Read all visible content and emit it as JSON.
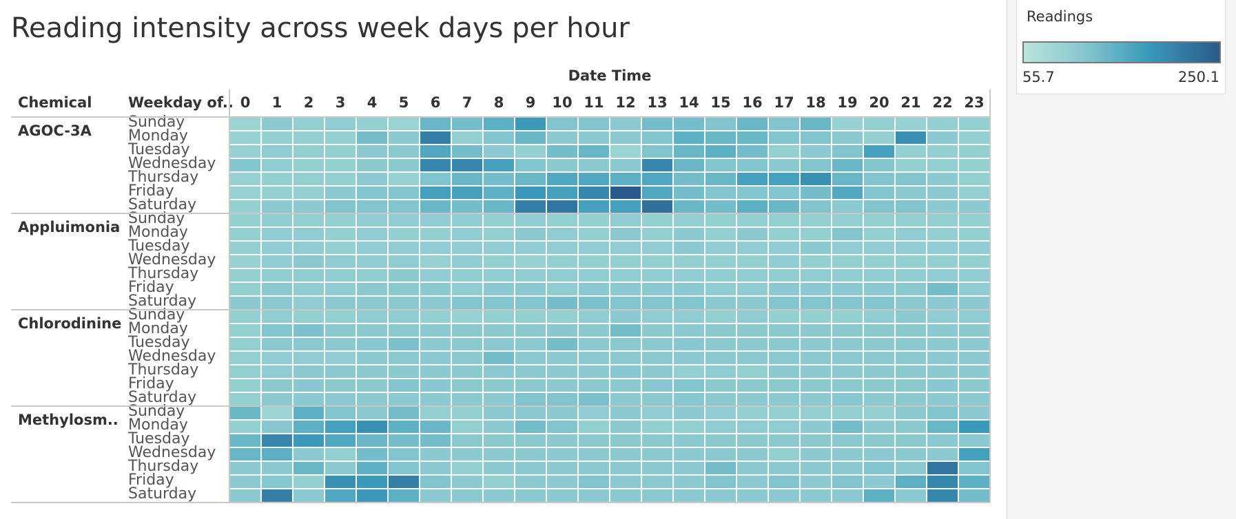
{
  "chart_data": {
    "type": "heatmap",
    "title": "Reading intensity across week days per hour",
    "x_axis_title": "Date Time",
    "row_header_labels": [
      "Chemical",
      "Weekday of.."
    ],
    "hours": [
      "0",
      "1",
      "2",
      "3",
      "4",
      "5",
      "6",
      "7",
      "8",
      "9",
      "10",
      "11",
      "12",
      "13",
      "14",
      "15",
      "16",
      "17",
      "18",
      "19",
      "20",
      "21",
      "22",
      "23"
    ],
    "weekdays": [
      "Sunday",
      "Monday",
      "Tuesday",
      "Wednesday",
      "Thursday",
      "Friday",
      "Saturday"
    ],
    "legend": {
      "title": "Readings",
      "min": 55.7,
      "max": 250.1,
      "min_label": "55.7",
      "max_label": "250.1"
    },
    "colors": {
      "low": "#b9e4da",
      "mid1": "#88c8cf",
      "mid2": "#3d9cbb",
      "high": "#2b5b88"
    },
    "chemicals": [
      {
        "name": "AGOC-3A",
        "values": [
          [
            90,
            110,
            100,
            105,
            100,
            90,
            140,
            130,
            150,
            180,
            120,
            120,
            110,
            130,
            130,
            120,
            140,
            120,
            140,
            95,
            100,
            95,
            100,
            100
          ],
          [
            95,
            100,
            100,
            100,
            130,
            110,
            210,
            100,
            120,
            140,
            110,
            110,
            110,
            120,
            150,
            140,
            140,
            120,
            120,
            110,
            100,
            190,
            110,
            100
          ],
          [
            95,
            105,
            100,
            100,
            110,
            110,
            160,
            130,
            110,
            100,
            130,
            140,
            90,
            120,
            140,
            150,
            130,
            100,
            110,
            120,
            170,
            100,
            100,
            100
          ],
          [
            120,
            105,
            100,
            100,
            110,
            110,
            200,
            200,
            170,
            120,
            110,
            110,
            110,
            200,
            140,
            120,
            120,
            110,
            120,
            140,
            120,
            100,
            100,
            100
          ],
          [
            95,
            100,
            100,
            100,
            110,
            95,
            120,
            140,
            130,
            140,
            160,
            160,
            150,
            160,
            130,
            140,
            170,
            170,
            190,
            140,
            120,
            120,
            110,
            100
          ],
          [
            95,
            100,
            100,
            110,
            120,
            120,
            170,
            170,
            150,
            180,
            170,
            200,
            250,
            160,
            130,
            120,
            120,
            120,
            130,
            160,
            120,
            110,
            110,
            100
          ],
          [
            100,
            110,
            110,
            120,
            120,
            120,
            140,
            130,
            140,
            210,
            220,
            170,
            170,
            225,
            140,
            130,
            150,
            140,
            120,
            110,
            120,
            120,
            110,
            110
          ]
        ]
      },
      {
        "name": "Appluimonia",
        "values": [
          [
            100,
            105,
            100,
            100,
            105,
            105,
            105,
            105,
            100,
            105,
            100,
            100,
            105,
            100,
            100,
            100,
            100,
            100,
            100,
            100,
            100,
            100,
            100,
            100
          ],
          [
            100,
            105,
            105,
            100,
            105,
            100,
            100,
            105,
            100,
            110,
            105,
            100,
            110,
            100,
            110,
            100,
            110,
            100,
            100,
            120,
            100,
            105,
            100,
            100
          ],
          [
            100,
            105,
            105,
            100,
            105,
            105,
            105,
            105,
            105,
            105,
            105,
            105,
            105,
            105,
            110,
            105,
            105,
            105,
            110,
            105,
            105,
            105,
            105,
            105
          ],
          [
            95,
            105,
            110,
            105,
            105,
            105,
            95,
            105,
            100,
            95,
            100,
            100,
            100,
            100,
            100,
            100,
            100,
            105,
            100,
            100,
            100,
            100,
            100,
            100
          ],
          [
            100,
            105,
            105,
            105,
            105,
            110,
            105,
            105,
            105,
            105,
            105,
            105,
            105,
            105,
            105,
            105,
            105,
            105,
            105,
            105,
            105,
            105,
            105,
            105
          ],
          [
            100,
            110,
            105,
            105,
            110,
            110,
            110,
            105,
            110,
            110,
            105,
            110,
            110,
            110,
            110,
            105,
            105,
            110,
            110,
            110,
            110,
            110,
            130,
            105
          ],
          [
            110,
            110,
            105,
            110,
            110,
            110,
            110,
            120,
            120,
            120,
            130,
            125,
            120,
            120,
            120,
            110,
            110,
            120,
            120,
            120,
            120,
            110,
            110,
            110
          ]
        ]
      },
      {
        "name": "Chlorodinine",
        "values": [
          [
            100,
            105,
            100,
            100,
            105,
            105,
            100,
            95,
            100,
            100,
            100,
            105,
            110,
            105,
            105,
            100,
            105,
            100,
            100,
            100,
            105,
            110,
            105,
            105
          ],
          [
            100,
            120,
            125,
            110,
            110,
            110,
            110,
            110,
            110,
            110,
            115,
            110,
            130,
            110,
            110,
            110,
            110,
            110,
            110,
            110,
            110,
            110,
            110,
            110
          ],
          [
            100,
            110,
            110,
            110,
            115,
            125,
            110,
            110,
            110,
            110,
            130,
            110,
            110,
            110,
            115,
            110,
            110,
            110,
            110,
            110,
            110,
            110,
            110,
            110
          ],
          [
            100,
            105,
            105,
            105,
            110,
            110,
            110,
            110,
            130,
            110,
            110,
            110,
            110,
            110,
            110,
            110,
            110,
            110,
            110,
            110,
            110,
            110,
            110,
            110
          ],
          [
            100,
            105,
            110,
            110,
            110,
            110,
            110,
            110,
            110,
            110,
            110,
            110,
            115,
            110,
            100,
            105,
            100,
            110,
            110,
            110,
            110,
            110,
            110,
            110
          ],
          [
            100,
            110,
            115,
            110,
            110,
            120,
            115,
            110,
            110,
            110,
            110,
            110,
            110,
            115,
            120,
            110,
            110,
            110,
            110,
            110,
            110,
            110,
            115,
            110
          ],
          [
            100,
            110,
            110,
            110,
            110,
            110,
            110,
            110,
            110,
            120,
            120,
            125,
            110,
            110,
            115,
            110,
            110,
            110,
            110,
            115,
            110,
            110,
            110,
            110
          ]
        ]
      },
      {
        "name": "Methylosm..",
        "values": [
          [
            140,
            90,
            150,
            120,
            110,
            130,
            100,
            100,
            110,
            110,
            110,
            105,
            110,
            105,
            110,
            105,
            100,
            100,
            100,
            100,
            100,
            110,
            120,
            110
          ],
          [
            100,
            115,
            150,
            170,
            190,
            150,
            140,
            100,
            110,
            130,
            120,
            100,
            110,
            100,
            100,
            105,
            105,
            105,
            110,
            130,
            110,
            110,
            140,
            180
          ],
          [
            140,
            200,
            180,
            160,
            140,
            130,
            130,
            110,
            110,
            110,
            110,
            110,
            110,
            110,
            110,
            110,
            110,
            110,
            110,
            110,
            110,
            110,
            110,
            110
          ],
          [
            140,
            150,
            110,
            100,
            130,
            120,
            110,
            110,
            110,
            110,
            110,
            110,
            110,
            110,
            110,
            110,
            110,
            100,
            110,
            110,
            110,
            110,
            110,
            170
          ],
          [
            110,
            110,
            140,
            110,
            150,
            120,
            110,
            100,
            110,
            110,
            110,
            110,
            110,
            110,
            110,
            130,
            110,
            110,
            110,
            110,
            120,
            110,
            220,
            120
          ],
          [
            110,
            115,
            100,
            190,
            180,
            210,
            120,
            110,
            100,
            110,
            110,
            120,
            110,
            110,
            110,
            120,
            110,
            120,
            110,
            120,
            110,
            150,
            200,
            150
          ],
          [
            110,
            210,
            110,
            160,
            180,
            150,
            110,
            110,
            110,
            110,
            110,
            110,
            110,
            110,
            110,
            110,
            110,
            110,
            110,
            110,
            150,
            110,
            200,
            130
          ]
        ]
      }
    ]
  }
}
